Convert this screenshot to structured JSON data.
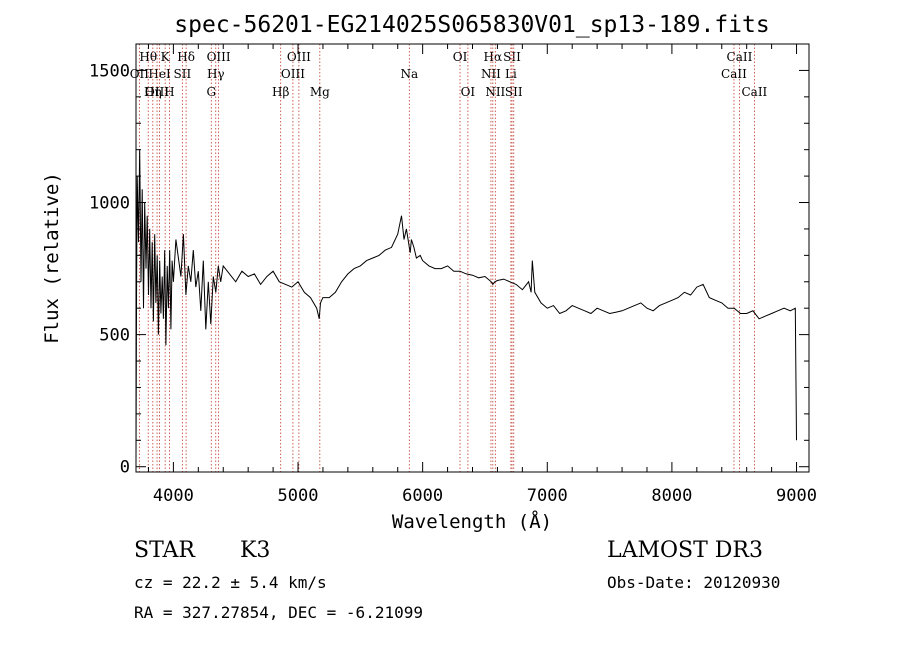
{
  "chart_data": {
    "type": "line",
    "title": "spec-56201-EG214025S065830V01_sp13-189.fits",
    "xlabel": "Wavelength (Å)",
    "ylabel": "Flux (relative)",
    "xlim": [
      3700,
      9100
    ],
    "ylim": [
      -20,
      1600
    ],
    "xticks": [
      4000,
      5000,
      6000,
      7000,
      8000,
      9000
    ],
    "yticks": [
      0,
      500,
      1000,
      1500
    ],
    "series": [
      {
        "name": "flux",
        "x": [
          3700,
          3705,
          3710,
          3720,
          3730,
          3740,
          3750,
          3760,
          3770,
          3780,
          3790,
          3800,
          3810,
          3820,
          3830,
          3840,
          3850,
          3860,
          3870,
          3880,
          3890,
          3900,
          3910,
          3920,
          3930,
          3940,
          3950,
          3960,
          3970,
          3980,
          3990,
          4000,
          4020,
          4040,
          4060,
          4080,
          4100,
          4120,
          4140,
          4160,
          4180,
          4200,
          4220,
          4240,
          4260,
          4280,
          4300,
          4320,
          4340,
          4360,
          4380,
          4400,
          4450,
          4500,
          4550,
          4600,
          4650,
          4700,
          4750,
          4800,
          4850,
          4900,
          4950,
          5000,
          5050,
          5100,
          5150,
          5170,
          5180,
          5200,
          5250,
          5300,
          5350,
          5400,
          5450,
          5500,
          5550,
          5600,
          5650,
          5700,
          5750,
          5800,
          5830,
          5850,
          5870,
          5890,
          5900,
          5910,
          5930,
          5950,
          5980,
          6000,
          6050,
          6100,
          6150,
          6200,
          6250,
          6300,
          6350,
          6400,
          6450,
          6500,
          6550,
          6563,
          6580,
          6600,
          6650,
          6700,
          6750,
          6800,
          6850,
          6870,
          6880,
          6900,
          6950,
          7000,
          7050,
          7100,
          7150,
          7200,
          7250,
          7300,
          7350,
          7400,
          7450,
          7500,
          7550,
          7600,
          7650,
          7700,
          7750,
          7800,
          7850,
          7900,
          7950,
          8000,
          8050,
          8100,
          8150,
          8200,
          8250,
          8300,
          8350,
          8400,
          8450,
          8500,
          8550,
          8600,
          8650,
          8700,
          8750,
          8800,
          8850,
          8900,
          8950,
          8990,
          9000
        ],
        "values": [
          30,
          700,
          1100,
          850,
          1200,
          700,
          1050,
          600,
          1000,
          750,
          950,
          650,
          900,
          600,
          850,
          550,
          880,
          620,
          800,
          500,
          780,
          580,
          720,
          560,
          820,
          460,
          760,
          600,
          820,
          520,
          780,
          700,
          860,
          790,
          720,
          880,
          650,
          760,
          700,
          820,
          680,
          740,
          590,
          780,
          520,
          700,
          540,
          720,
          660,
          760,
          700,
          760,
          730,
          700,
          740,
          720,
          730,
          690,
          720,
          740,
          700,
          690,
          680,
          700,
          660,
          640,
          600,
          560,
          620,
          640,
          640,
          660,
          700,
          730,
          750,
          760,
          780,
          790,
          800,
          820,
          830,
          880,
          950,
          860,
          900,
          840,
          810,
          860,
          830,
          790,
          800,
          780,
          760,
          750,
          750,
          760,
          740,
          740,
          730,
          725,
          715,
          720,
          700,
          690,
          700,
          705,
          710,
          700,
          690,
          670,
          700,
          660,
          780,
          660,
          620,
          600,
          610,
          580,
          590,
          610,
          600,
          590,
          580,
          600,
          590,
          580,
          585,
          590,
          600,
          610,
          620,
          600,
          590,
          610,
          620,
          630,
          640,
          660,
          650,
          680,
          690,
          640,
          630,
          620,
          600,
          600,
          580,
          580,
          590,
          560,
          570,
          580,
          590,
          600,
          590,
          600,
          100
        ]
      }
    ],
    "line_labels": [
      {
        "text": "Hθ",
        "wavelength": 3798,
        "row": 0
      },
      {
        "text": "K",
        "wavelength": 3934,
        "row": 0
      },
      {
        "text": "Hδ",
        "wavelength": 4102,
        "row": 0
      },
      {
        "text": "OIII",
        "wavelength": 4363,
        "row": 0
      },
      {
        "text": "OIII",
        "wavelength": 5007,
        "row": 0
      },
      {
        "text": "OI",
        "wavelength": 6300,
        "row": 0
      },
      {
        "text": "Hα",
        "wavelength": 6563,
        "row": 0
      },
      {
        "text": "SII",
        "wavelength": 6717,
        "row": 0
      },
      {
        "text": "CaII",
        "wavelength": 8542,
        "row": 0
      },
      {
        "text": "OII",
        "wavelength": 3727,
        "row": 1
      },
      {
        "text": "HeI",
        "wavelength": 3889,
        "row": 1
      },
      {
        "text": "SII",
        "wavelength": 4072,
        "row": 1
      },
      {
        "text": "Hγ",
        "wavelength": 4340,
        "row": 1
      },
      {
        "text": "OIII",
        "wavelength": 4959,
        "row": 1
      },
      {
        "text": "Na",
        "wavelength": 5893,
        "row": 1
      },
      {
        "text": "NII",
        "wavelength": 6548,
        "row": 1
      },
      {
        "text": "Li",
        "wavelength": 6708,
        "row": 1
      },
      {
        "text": "CaII",
        "wavelength": 8498,
        "row": 1
      },
      {
        "text": "OIII",
        "wavelength": 3869,
        "row": 2
      },
      {
        "text": "Hη",
        "wavelength": 3835,
        "row": 2
      },
      {
        "text": "H",
        "wavelength": 3968,
        "row": 2
      },
      {
        "text": "G",
        "wavelength": 4304,
        "row": 2
      },
      {
        "text": "Hβ",
        "wavelength": 4861,
        "row": 2
      },
      {
        "text": "Mg",
        "wavelength": 5175,
        "row": 2
      },
      {
        "text": "OI",
        "wavelength": 6363,
        "row": 2
      },
      {
        "text": "NII",
        "wavelength": 6583,
        "row": 2
      },
      {
        "text": "SII",
        "wavelength": 6731,
        "row": 2
      },
      {
        "text": "CaII",
        "wavelength": 8662,
        "row": 2
      }
    ]
  },
  "info": {
    "object_class": "STAR",
    "subclass": "K3",
    "survey": "LAMOST DR3",
    "velocity": "cz = 22.2 ± 5.4 km/s",
    "obs_date": "Obs-Date: 20120930",
    "coords": "RA = 327.27854, DEC =  -6.21099"
  },
  "colors": {
    "line": "#000000",
    "marker": "#c0392b"
  }
}
